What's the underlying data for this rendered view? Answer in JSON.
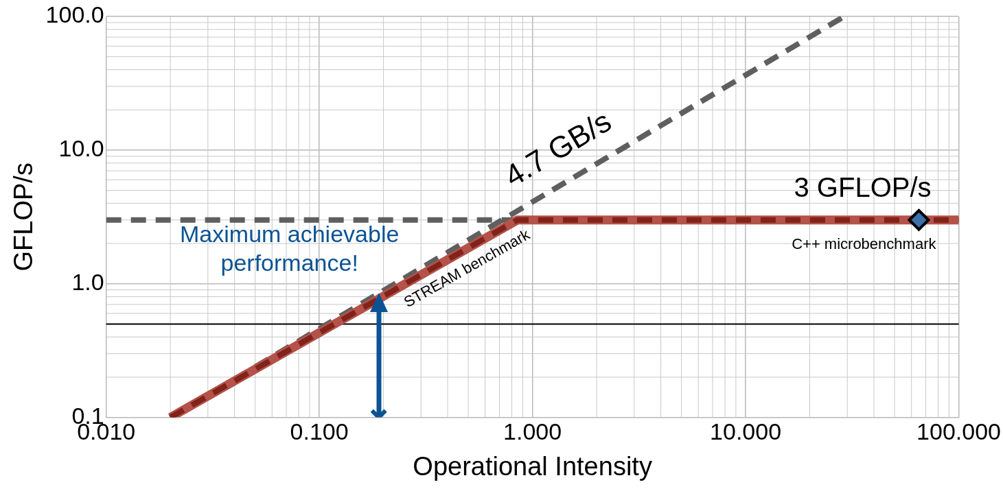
{
  "chart_data": {
    "type": "line",
    "xlabel": "Operational Intensity",
    "ylabel": "GFLOP/s",
    "log": "xy",
    "grid": true,
    "legend": false,
    "xlim": [
      0.01,
      100
    ],
    "xticks": [
      {
        "value": 0.01,
        "label": "0.010"
      },
      {
        "value": 0.1,
        "label": "0.100"
      },
      {
        "value": 1,
        "label": "1.000"
      },
      {
        "value": 10,
        "label": "10.000"
      },
      {
        "value": 100,
        "label": "100.000"
      }
    ],
    "ylim": [
      0.1,
      100
    ],
    "yticks": [
      0.1,
      {
        "value": 1,
        "label": "1.0"
      },
      {
        "value": 10,
        "label": "10.0"
      },
      {
        "value": 100,
        "label": "100.0"
      }
    ],
    "ref_lines": [
      {
        "axis": "y",
        "value": 0.5,
        "color": "#000000"
      }
    ],
    "series": [
      {
        "type": "line",
        "x": [
          0.01,
          100
        ],
        "values": [
          3,
          3
        ],
        "color": "#5f5f5f",
        "line_style": "dashed",
        "marker": "none"
      },
      {
        "type": "line",
        "x": [
          0.02,
          29
        ],
        "values": [
          0.1,
          100
        ],
        "color": "#5f5f5f",
        "line_style": "dashed",
        "marker": "none"
      },
      {
        "type": "line",
        "x": [
          0.02,
          0.85,
          100
        ],
        "values": [
          0.1,
          3,
          3
        ],
        "color": "#b5524a",
        "line_style": "solid",
        "marker": "none"
      },
      {
        "type": "line",
        "x": [
          0.02,
          0.85,
          100
        ],
        "values": [
          0.1,
          3,
          3
        ],
        "color": "#80231a",
        "line_style": "dashed",
        "marker": "none"
      },
      {
        "type": "scatter",
        "x": [
          65
        ],
        "values": [
          3
        ],
        "color": "#3d6fa8",
        "marker": "diamond"
      },
      {
        "type": "scatter",
        "x": [
          0.19
        ],
        "values": [
          0.1
        ],
        "color": "#0b5394",
        "marker": "cross"
      }
    ],
    "annotations": [
      "4.7 GB/s",
      "3 GFLOP/s",
      "C++ microbenchmark",
      "STREAM benchmark",
      {
        "text": "Maximum achievable performance!",
        "x": 0.19,
        "y": 0.85
      }
    ]
  }
}
